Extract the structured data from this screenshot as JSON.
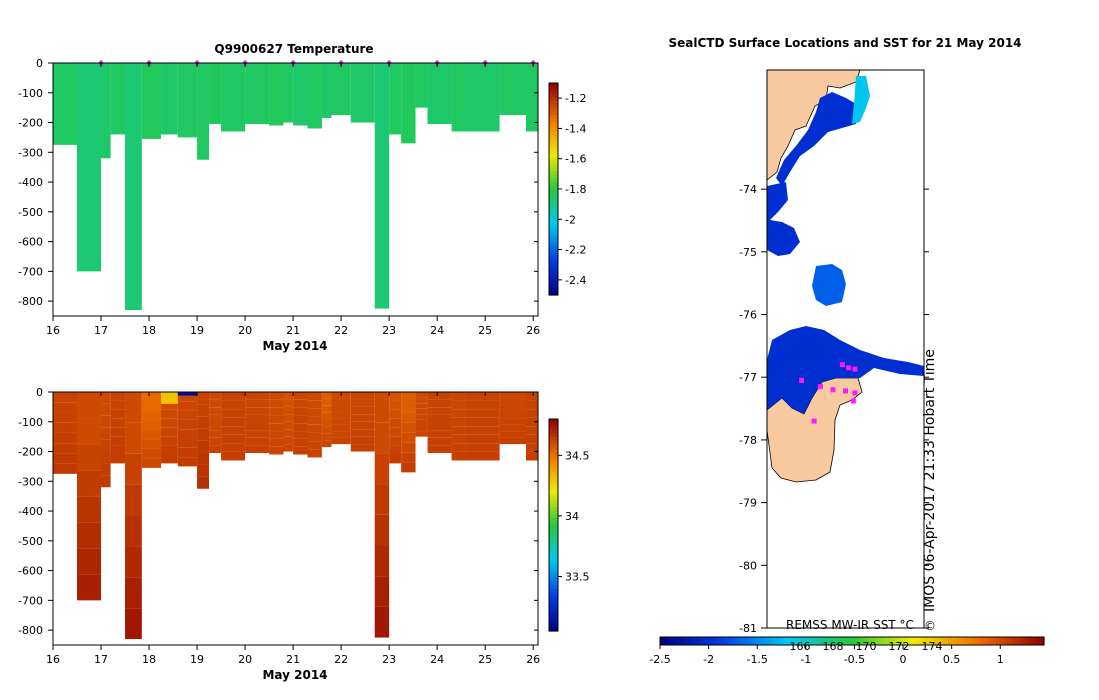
{
  "chart_data": [
    {
      "type": "heatmap",
      "title": "Q9900627  Temperature",
      "xlabel": "May 2014",
      "ylabel": "",
      "xlim": [
        16,
        26.1
      ],
      "ylim": [
        -850,
        0
      ],
      "x_ticks": [
        "16",
        "17",
        "18",
        "19",
        "20",
        "21",
        "22",
        "23",
        "24",
        "25",
        "26"
      ],
      "y_ticks": [
        "0",
        "-100",
        "-200",
        "-300",
        "-400",
        "-500",
        "-600",
        "-700",
        "-800"
      ],
      "colorbar": {
        "range": [
          -2.5,
          -1.1
        ],
        "ticks": [
          "-1.2",
          "-1.4",
          "-1.6",
          "-1.8",
          "-2",
          "-2.2",
          "-2.4"
        ]
      },
      "profile_markers": [
        17,
        18,
        19,
        20,
        21,
        22,
        23,
        24,
        25,
        26
      ],
      "profiles": [
        {
          "x0": 16.0,
          "x1": 16.5,
          "depth": 275,
          "value": -1.85
        },
        {
          "x0": 16.5,
          "x1": 17.0,
          "depth": 700,
          "value": -1.87
        },
        {
          "x0": 17.0,
          "x1": 17.2,
          "depth": 320,
          "value": -1.86
        },
        {
          "x0": 17.2,
          "x1": 17.5,
          "depth": 240,
          "value": -1.85
        },
        {
          "x0": 17.5,
          "x1": 17.85,
          "depth": 830,
          "value": -1.87
        },
        {
          "x0": 17.85,
          "x1": 18.25,
          "depth": 255,
          "value": -1.84
        },
        {
          "x0": 18.25,
          "x1": 18.6,
          "depth": 240,
          "value": -1.86
        },
        {
          "x0": 18.6,
          "x1": 19.0,
          "depth": 250,
          "value": -1.85
        },
        {
          "x0": 19.0,
          "x1": 19.25,
          "depth": 325,
          "value": -1.85
        },
        {
          "x0": 19.25,
          "x1": 19.5,
          "depth": 205,
          "value": -1.84
        },
        {
          "x0": 19.5,
          "x1": 20.0,
          "depth": 230,
          "value": -1.85
        },
        {
          "x0": 20.0,
          "x1": 20.5,
          "depth": 205,
          "value": -1.85
        },
        {
          "x0": 20.5,
          "x1": 20.8,
          "depth": 210,
          "value": -1.84
        },
        {
          "x0": 20.8,
          "x1": 21.0,
          "depth": 200,
          "value": -1.85
        },
        {
          "x0": 21.0,
          "x1": 21.3,
          "depth": 210,
          "value": -1.86
        },
        {
          "x0": 21.3,
          "x1": 21.6,
          "depth": 220,
          "value": -1.85
        },
        {
          "x0": 21.6,
          "x1": 21.8,
          "depth": 185,
          "value": -1.86
        },
        {
          "x0": 21.8,
          "x1": 22.2,
          "depth": 175,
          "value": -1.85
        },
        {
          "x0": 22.2,
          "x1": 22.7,
          "depth": 200,
          "value": -1.86
        },
        {
          "x0": 22.7,
          "x1": 23.0,
          "depth": 825,
          "value": -1.87
        },
        {
          "x0": 23.0,
          "x1": 23.25,
          "depth": 240,
          "value": -1.85
        },
        {
          "x0": 23.25,
          "x1": 23.55,
          "depth": 270,
          "value": -1.84
        },
        {
          "x0": 23.55,
          "x1": 23.8,
          "depth": 150,
          "value": -1.85
        },
        {
          "x0": 23.8,
          "x1": 24.3,
          "depth": 205,
          "value": -1.86
        },
        {
          "x0": 24.3,
          "x1": 24.6,
          "depth": 230,
          "value": -1.85
        },
        {
          "x0": 24.6,
          "x1": 25.3,
          "depth": 230,
          "value": -1.86
        },
        {
          "x0": 25.3,
          "x1": 25.85,
          "depth": 175,
          "value": -1.85
        },
        {
          "x0": 25.85,
          "x1": 26.1,
          "depth": 230,
          "value": -1.85
        }
      ]
    },
    {
      "type": "heatmap",
      "title": "",
      "xlabel": "May 2014",
      "ylabel": "",
      "xlim": [
        16,
        26.1
      ],
      "ylim": [
        -850,
        0
      ],
      "x_ticks": [
        "16",
        "17",
        "18",
        "19",
        "20",
        "21",
        "22",
        "23",
        "24",
        "25",
        "26"
      ],
      "y_ticks": [
        "0",
        "-100",
        "-200",
        "-300",
        "-400",
        "-500",
        "-600",
        "-700",
        "-800"
      ],
      "colorbar": {
        "range": [
          33.05,
          34.8
        ],
        "ticks": [
          "34.5",
          "34",
          "33.5"
        ]
      },
      "surface_anomalies": [
        {
          "x0": 18.25,
          "x1": 18.6,
          "depth": 40,
          "value": 34.3
        },
        {
          "x0": 18.6,
          "x1": 19.0,
          "depth": 12,
          "value": 33.1
        }
      ],
      "profiles": [
        {
          "x0": 16.0,
          "x1": 16.5,
          "depth": 275,
          "value": 34.62,
          "deep_value": 34.65
        },
        {
          "x0": 16.5,
          "x1": 17.0,
          "depth": 700,
          "value": 34.6,
          "deep_value": 34.74
        },
        {
          "x0": 17.0,
          "x1": 17.2,
          "depth": 320,
          "value": 34.6,
          "deep_value": 34.65
        },
        {
          "x0": 17.2,
          "x1": 17.5,
          "depth": 240,
          "value": 34.62,
          "deep_value": 34.64
        },
        {
          "x0": 17.5,
          "x1": 17.85,
          "depth": 830,
          "value": 34.6,
          "deep_value": 34.76
        },
        {
          "x0": 17.85,
          "x1": 18.25,
          "depth": 255,
          "value": 34.52,
          "deep_value": 34.62
        },
        {
          "x0": 18.25,
          "x1": 18.6,
          "depth": 240,
          "value": 34.6,
          "deep_value": 34.64
        },
        {
          "x0": 18.6,
          "x1": 19.0,
          "depth": 250,
          "value": 34.61,
          "deep_value": 34.64
        },
        {
          "x0": 19.0,
          "x1": 19.25,
          "depth": 325,
          "value": 34.62,
          "deep_value": 34.68
        },
        {
          "x0": 19.25,
          "x1": 19.5,
          "depth": 205,
          "value": 34.6,
          "deep_value": 34.62
        },
        {
          "x0": 19.5,
          "x1": 20.0,
          "depth": 230,
          "value": 34.62,
          "deep_value": 34.63
        },
        {
          "x0": 20.0,
          "x1": 20.5,
          "depth": 205,
          "value": 34.61,
          "deep_value": 34.63
        },
        {
          "x0": 20.5,
          "x1": 20.8,
          "depth": 210,
          "value": 34.6,
          "deep_value": 34.62
        },
        {
          "x0": 20.8,
          "x1": 21.0,
          "depth": 200,
          "value": 34.58,
          "deep_value": 34.62
        },
        {
          "x0": 21.0,
          "x1": 21.3,
          "depth": 210,
          "value": 34.61,
          "deep_value": 34.63
        },
        {
          "x0": 21.3,
          "x1": 21.6,
          "depth": 220,
          "value": 34.6,
          "deep_value": 34.62
        },
        {
          "x0": 21.6,
          "x1": 21.8,
          "depth": 185,
          "value": 34.55,
          "deep_value": 34.62
        },
        {
          "x0": 21.8,
          "x1": 22.2,
          "depth": 175,
          "value": 34.6,
          "deep_value": 34.62
        },
        {
          "x0": 22.2,
          "x1": 22.7,
          "depth": 200,
          "value": 34.61,
          "deep_value": 34.63
        },
        {
          "x0": 22.7,
          "x1": 23.0,
          "depth": 825,
          "value": 34.6,
          "deep_value": 34.76
        },
        {
          "x0": 23.0,
          "x1": 23.25,
          "depth": 240,
          "value": 34.58,
          "deep_value": 34.64
        },
        {
          "x0": 23.25,
          "x1": 23.55,
          "depth": 270,
          "value": 34.55,
          "deep_value": 34.65
        },
        {
          "x0": 23.55,
          "x1": 23.8,
          "depth": 150,
          "value": 34.6,
          "deep_value": 34.62
        },
        {
          "x0": 23.8,
          "x1": 24.3,
          "depth": 205,
          "value": 34.62,
          "deep_value": 34.63
        },
        {
          "x0": 24.3,
          "x1": 24.6,
          "depth": 230,
          "value": 34.61,
          "deep_value": 34.63
        },
        {
          "x0": 24.6,
          "x1": 25.3,
          "depth": 230,
          "value": 34.62,
          "deep_value": 34.63
        },
        {
          "x0": 25.3,
          "x1": 25.85,
          "depth": 175,
          "value": 34.61,
          "deep_value": 34.63
        },
        {
          "x0": 25.85,
          "x1": 26.1,
          "depth": 230,
          "value": 34.62,
          "deep_value": 34.63
        }
      ]
    },
    {
      "type": "heatmap",
      "title": "SealCTD Surface Locations and SST for 21 May 2014",
      "xlabel": "",
      "ylabel": "",
      "ylim": [
        -81,
        -72.1
      ],
      "y_ticks": [
        "-74",
        "-75",
        "-76",
        "-77",
        "-78",
        "-79",
        "-80",
        "-81"
      ],
      "colorbar": {
        "label": "REMSS MW-IR SST °C",
        "range": [
          -2.5,
          1.45
        ],
        "ticks": [
          "-2.5",
          "-2",
          "-1.5",
          "-1",
          "-0.5",
          "0",
          "0.5",
          "1"
        ],
        "overlay_ticks": [
          "166",
          "168",
          "170",
          "172",
          "174"
        ]
      },
      "side_text": "IMOS 06-Apr-2017 21:33 Hobart Time",
      "copyright": "©",
      "land_color": "#f9c9a0",
      "sst_regions": [
        {
          "name": "ross-sea-strip-north",
          "value": -2.0
        },
        {
          "name": "ross-sea-strip-tip",
          "value": -1.2
        },
        {
          "name": "ross-sea-patch-mid",
          "value": -1.7
        },
        {
          "name": "ross-sea-ice-shelf-front",
          "value": -2.0
        }
      ],
      "seal_locations": [
        {
          "lat": -76.8,
          "lon_frac": 0.48
        },
        {
          "lat": -76.85,
          "lon_frac": 0.52
        },
        {
          "lat": -76.87,
          "lon_frac": 0.56
        },
        {
          "lat": -77.05,
          "lon_frac": 0.22
        },
        {
          "lat": -77.15,
          "lon_frac": 0.34
        },
        {
          "lat": -77.2,
          "lon_frac": 0.42
        },
        {
          "lat": -77.22,
          "lon_frac": 0.5
        },
        {
          "lat": -77.25,
          "lon_frac": 0.56
        },
        {
          "lat": -77.38,
          "lon_frac": 0.55
        },
        {
          "lat": -77.7,
          "lon_frac": 0.3
        }
      ]
    }
  ]
}
